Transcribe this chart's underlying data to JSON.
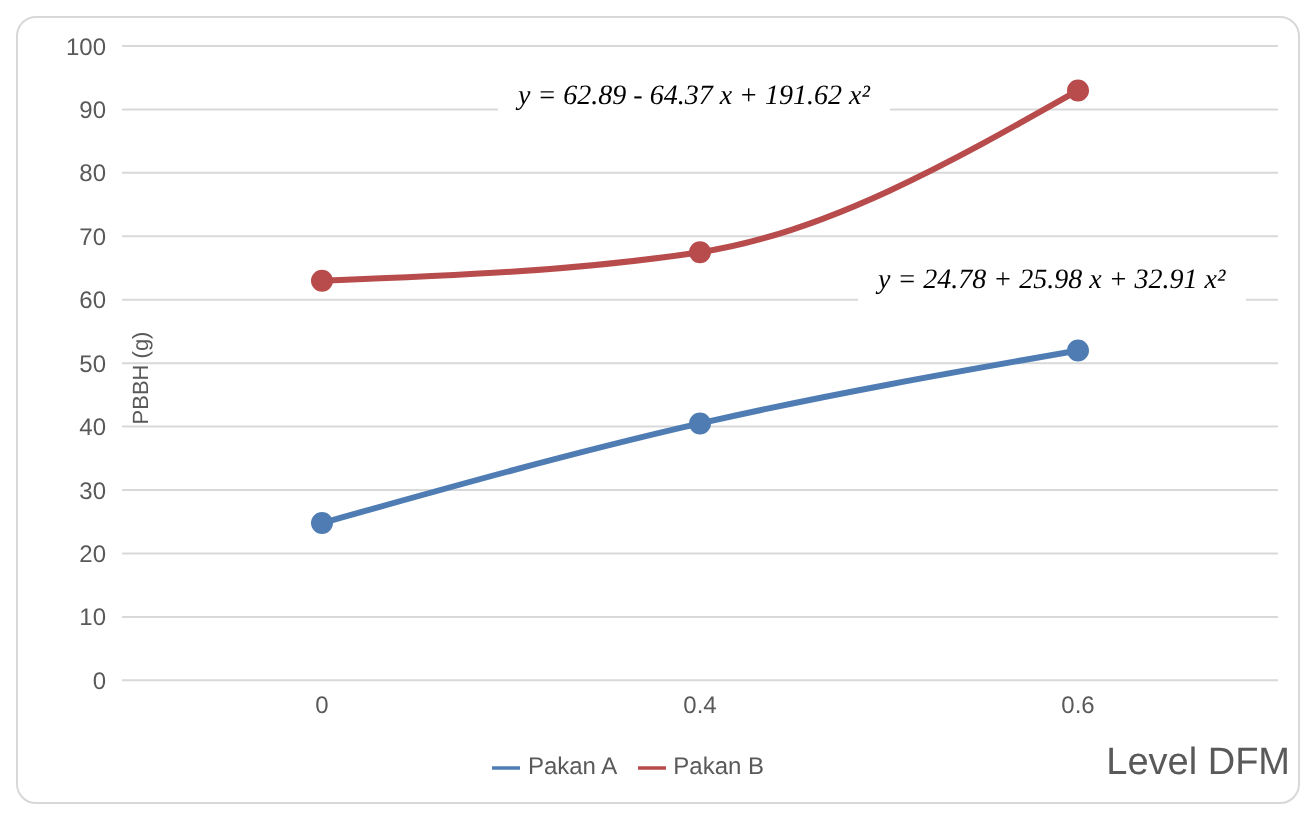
{
  "chart_data": {
    "type": "line",
    "categories": [
      "0",
      "0.4",
      "0.6"
    ],
    "xlabel": "Level DFM",
    "ylabel": "PBBH (g)",
    "series": [
      {
        "name": "Pakan A",
        "color": "#4f7db3",
        "values": [
          24.8,
          40.5,
          52
        ]
      },
      {
        "name": "Pakan B",
        "color": "#b84b4b",
        "values": [
          63,
          67.5,
          93
        ]
      }
    ],
    "ylim": [
      0,
      100
    ],
    "yticks": [
      0,
      10,
      20,
      30,
      40,
      50,
      60,
      70,
      80,
      90,
      100
    ],
    "grid": "y",
    "legend": "bottom",
    "marker": "circle",
    "annotations": [
      "y = 62.89 - 64.37 x + 191.62 x²",
      "y = 24.78 + 25.98 x + 32.91 x²"
    ]
  }
}
